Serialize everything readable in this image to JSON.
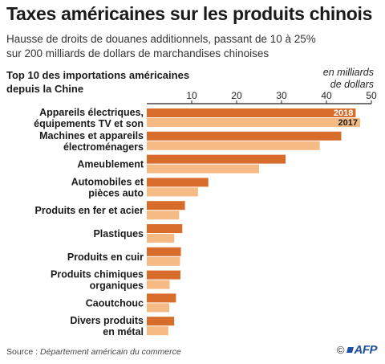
{
  "header": {
    "title": "Taxes américaines sur les produits chinois",
    "subtitle_line1": "Hausse de droits de douanes additionnels, passant de 10 à 25%",
    "subtitle_line2": "sur 200 milliards de dollars de marchandises chinoises"
  },
  "chart_heading": {
    "line1": "Top 10 des importations américaines",
    "line2": "depuis la Chine"
  },
  "unit": {
    "line1": "en milliards",
    "line2": "de dollars"
  },
  "colors": {
    "series_2018": "#d86d2b",
    "series_2017": "#f6ba84",
    "axis": "#222222"
  },
  "chart_data": {
    "type": "bar",
    "orientation": "horizontal",
    "title": "Top 10 des importations américaines depuis la Chine",
    "xlabel": "en milliards de dollars",
    "xlim": [
      0,
      50
    ],
    "xticks": [
      10,
      20,
      30,
      40,
      50
    ],
    "grid": false,
    "categories": [
      [
        "Appareils électriques,",
        "équipements TV et son"
      ],
      [
        "Machines et appareils",
        "électroménagers"
      ],
      [
        "Ameublement"
      ],
      [
        "Automobiles et",
        "pièces auto"
      ],
      [
        "Produits en fer et acier"
      ],
      [
        "Plastiques"
      ],
      [
        "Produits en cuir"
      ],
      [
        "Produits chimiques",
        "organiques"
      ],
      [
        "Caoutchouc"
      ],
      [
        "Divers produits",
        "en métal"
      ]
    ],
    "series": [
      {
        "name": "2018",
        "values": [
          46.5,
          43.3,
          30.9,
          13.7,
          8.5,
          7.9,
          7.6,
          7.5,
          6.5,
          6.1
        ]
      },
      {
        "name": "2017",
        "values": [
          47.5,
          38.5,
          25.0,
          11.4,
          7.2,
          6.1,
          7.4,
          5.1,
          5.0,
          4.8
        ]
      }
    ]
  },
  "footer": {
    "source_label": "Source :",
    "source_text": "Département américain du commerce",
    "copyright": "©",
    "logo": "AFP"
  }
}
